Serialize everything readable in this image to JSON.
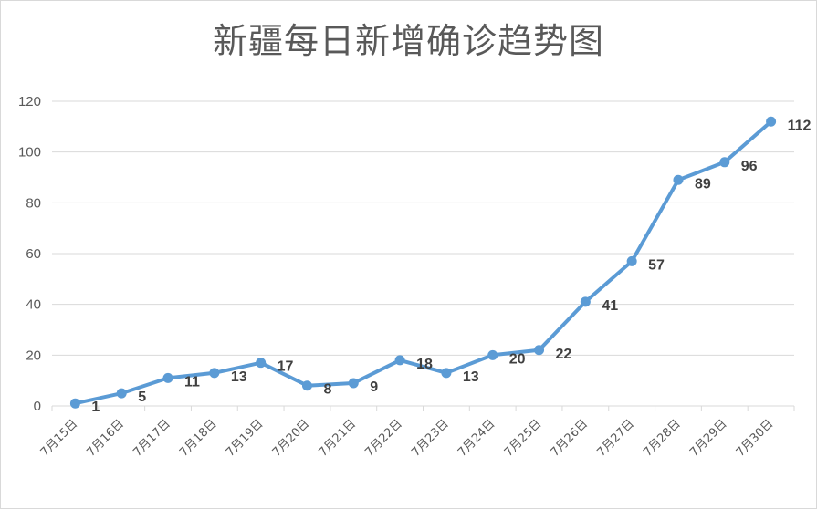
{
  "chart_data": {
    "type": "line",
    "title": "新疆每日新增确诊趋势图",
    "xlabel": "",
    "ylabel": "",
    "ylim": [
      0,
      120
    ],
    "yticks": [
      "0",
      "20",
      "40",
      "60",
      "80",
      "100",
      "120"
    ],
    "grid": true,
    "legend": "none",
    "categories": [
      "7月15日",
      "7月16日",
      "7月17日",
      "7月18日",
      "7月19日",
      "7月20日",
      "7月21日",
      "7月22日",
      "7月23日",
      "7月24日",
      "7月25日",
      "7月26日",
      "7月27日",
      "7月28日",
      "7月29日",
      "7月30日"
    ],
    "series": [
      {
        "values": [
          1,
          5,
          11,
          13,
          17,
          8,
          9,
          18,
          13,
          20,
          22,
          41,
          57,
          89,
          96,
          112
        ],
        "labels": [
          "1",
          "5",
          "11",
          "13",
          "17",
          "8",
          "9",
          "18",
          "13",
          "20",
          "22",
          "41",
          "57",
          "89",
          "96",
          "112"
        ],
        "color": "#5b9bd5"
      }
    ]
  },
  "colors": {
    "line": "#5b9bd5",
    "grid": "#d9d9d9",
    "axis_text": "#595959",
    "label_text": "#404040"
  }
}
